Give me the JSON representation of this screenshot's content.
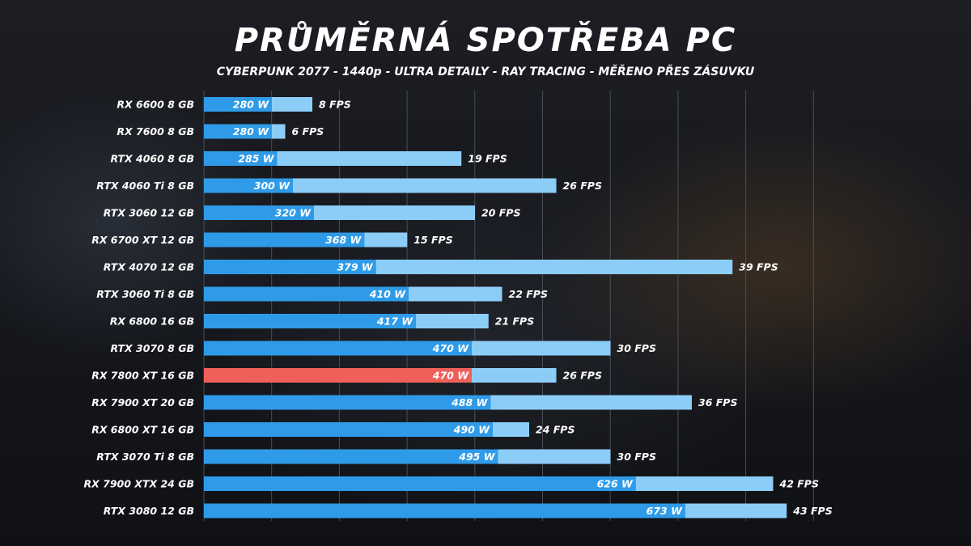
{
  "chart_data": {
    "type": "bar",
    "orientation": "horizontal",
    "title": "PRŮMĚRNÁ SPOTŘEBA PC",
    "subtitle": "CYBERPUNK 2077 - 1440p - ULTRA DETAILY - RAY TRACING - MĚŘENO PŘES ZÁSUVKU",
    "grid": true,
    "categories": [
      "RX 6600 8 GB",
      "RX 7600 8 GB",
      "RTX 4060 8 GB",
      "RTX 4060 Ti 8 GB",
      "RTX 3060 12 GB",
      "RX 6700 XT 12 GB",
      "RTX 4070 12 GB",
      "RTX 3060 Ti 8 GB",
      "RX 6800 16 GB",
      "RTX 3070 8 GB",
      "RX 7800 XT 16 GB",
      "RX 7900 XT 20 GB",
      "RX 6800 XT 16 GB",
      "RTX 3070 Ti 8 GB",
      "RX 7900 XTX 24 GB",
      "RTX 3080 12 GB"
    ],
    "series": [
      {
        "name": "",
        "unit": "W",
        "values": [
          280,
          280,
          285,
          300,
          320,
          368,
          379,
          410,
          417,
          470,
          470,
          488,
          490,
          495,
          626,
          673
        ],
        "labels": [
          "280 W",
          "280 W",
          "285 W",
          "300 W",
          "320 W",
          "368 W",
          "379 W",
          "410 W",
          "417 W",
          "470 W",
          "470 W",
          "488 W",
          "490 W",
          "495 W",
          "626 W",
          "673 W"
        ]
      },
      {
        "name": "",
        "unit": "FPS",
        "values": [
          8,
          6,
          19,
          26,
          20,
          15,
          39,
          22,
          21,
          30,
          26,
          36,
          24,
          30,
          42,
          43
        ],
        "labels": [
          "8 FPS",
          "6 FPS",
          "19 FPS",
          "26 FPS",
          "20 FPS",
          "15 FPS",
          "39 FPS",
          "22 FPS",
          "21 FPS",
          "30 FPS",
          "26 FPS",
          "36 FPS",
          "24 FPS",
          "30 FPS",
          "42 FPS",
          "43 FPS"
        ]
      }
    ],
    "highlight_index": 10,
    "colors": {
      "power": "#2f9be8",
      "power_highlight": "#f0605a",
      "fps": "#8ccdf8",
      "grid": "#4a4d55",
      "text": "#ffffff"
    }
  }
}
